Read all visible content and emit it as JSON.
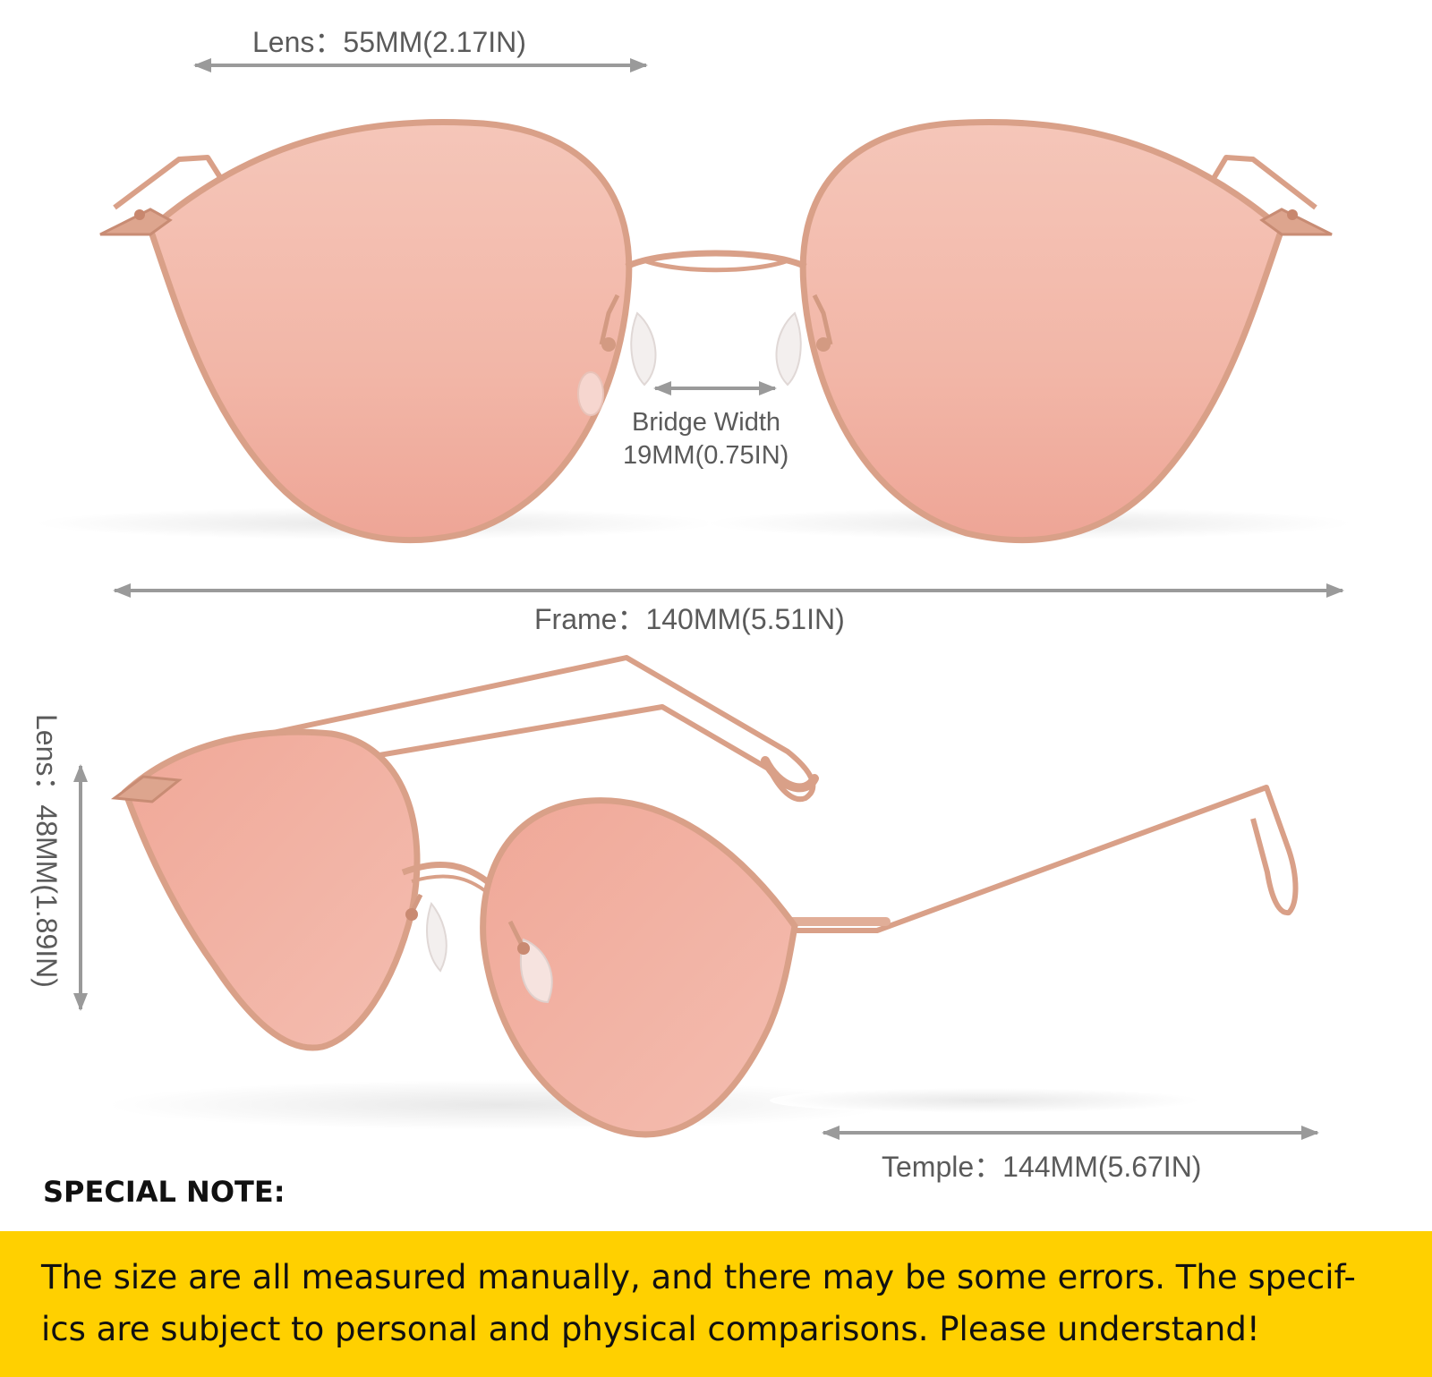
{
  "colors": {
    "lens_tint": "#f2b9ab",
    "frame_metal": "#d9a088",
    "arrow_gray": "#9a9a9a",
    "banner_yellow": "#ffd000"
  },
  "measurements": {
    "lens_width": "Lens：55MM(2.17IN)",
    "bridge_label": "Bridge Width",
    "bridge_value": "19MM(0.75IN)",
    "frame_width": "Frame：140MM(5.51IN)",
    "lens_height": "Lens：48MM(1.89IN)",
    "temple_length": "Temple：144MM(5.67IN)"
  },
  "note": {
    "title": "SPECIAL NOTE:",
    "line1": "The size are all measured manually, and there may be some errors. The specif-",
    "line2": "ics are subject to personal and physical comparisons. Please understand!"
  }
}
